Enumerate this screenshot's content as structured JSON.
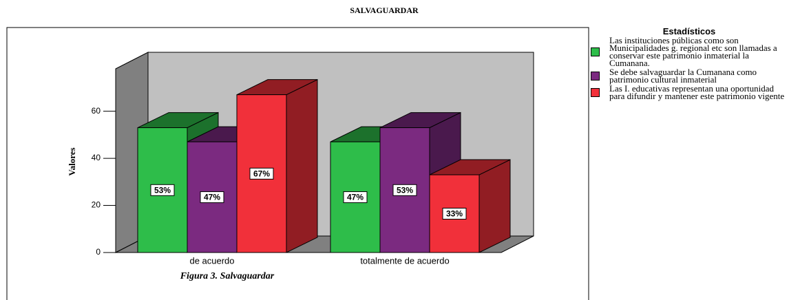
{
  "chart_data": {
    "type": "bar3d",
    "title": "SALVAGUARDAR",
    "caption": "Figura 3. Salvaguardar",
    "y_label": "Valores",
    "legend_title": "Estadísticos",
    "categories": [
      "de acuerdo",
      "totalmente de acuerdo"
    ],
    "series": [
      {
        "name": "Las instituciones públicas como son Municipalidades g. regional etc son llamadas a conservar este patrimonio inmaterial la Cumanana.",
        "color": "#2ebd4a",
        "values": [
          53,
          47
        ],
        "value_labels": [
          "53%",
          "47%"
        ]
      },
      {
        "name": "Se debe salvaguardar la Cumanana como patrimonio cultural inmaterial",
        "color": "#7b2a80",
        "values": [
          47,
          53
        ],
        "value_labels": [
          "47%",
          "53%"
        ]
      },
      {
        "name": "Las I. educativas representan una oportunidad para difundir y mantener este patrimonio vigente",
        "color": "#f1303a",
        "values": [
          67,
          33
        ],
        "value_labels": [
          "67%",
          "33%"
        ]
      }
    ],
    "ylim": [
      0,
      78
    ],
    "yticks": [
      0,
      20,
      40,
      60
    ],
    "legend": "right"
  }
}
